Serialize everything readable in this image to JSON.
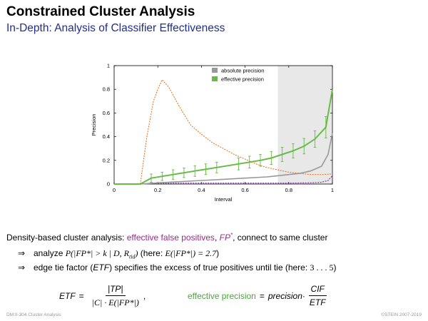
{
  "slide": {
    "title": "Constrained Cluster Analysis",
    "subtitle": "In-Depth: Analysis of Classifier Effectiveness"
  },
  "text": {
    "line1_a": "Density-based cluster analysis: ",
    "line1_em": "effective false positives",
    "line1_comma": ", ",
    "line1_fp": "FP",
    "line1_star": "*",
    "line1_b": ", connect to same cluster",
    "bullet1_arrow": "⇒",
    "bullet1_a": "analyze ",
    "bullet1_math": "P(|FP*| > k  |  D, R",
    "bullet1_sub": "tid",
    "bullet1_math_end": ")",
    "bullet1_b": "  (here: ",
    "bullet1_math2": "E(|FP*|) = 2.7",
    "bullet1_c": ")",
    "bullet2_arrow": "⇒",
    "bullet2_a": "edge tie factor (",
    "bullet2_etf": "ETF",
    "bullet2_b": ") specifies the excess of true positives until tie  (here: ",
    "bullet2_range": "3 . . . 5",
    "bullet2_c": ")"
  },
  "formula": {
    "etf_lhs": "ETF",
    "eq": "=",
    "etf_num": "|TP|",
    "etf_den": "|C| · E(|FP*|)",
    "comma": ",",
    "effprec_lhs": "effective precision",
    "eq2": "=",
    "prec": "precision",
    "dot": " ·",
    "cif_num": "CIF",
    "cif_den": "ETF"
  },
  "footer": {
    "left": "DM:II-304   Cluster Analysis",
    "right": "©STEIN 2007-2019"
  },
  "colors": {
    "absolute": "#999999",
    "effective": "#66bb44",
    "orange": "#ee7722",
    "purple": "#773399",
    "shade": "#e8e8e8"
  },
  "chart_data": {
    "type": "line",
    "xlabel": "Interval",
    "ylabel": "Precision",
    "xlim": [
      0,
      1
    ],
    "ylim": [
      0,
      1
    ],
    "xticks": [
      "0",
      "0.2",
      "0.4",
      "0.6",
      "0.8",
      "1"
    ],
    "yticks": [
      "0",
      "0.2",
      "0.4",
      "0.6",
      "0.8",
      "1"
    ],
    "xtick_values": [
      0,
      0.2,
      0.4,
      0.6,
      0.8,
      1
    ],
    "ytick_values": [
      0,
      0.2,
      0.4,
      0.6,
      0.8,
      1
    ],
    "legend_position": "top-right",
    "shaded_region": [
      0.75,
      1.0
    ],
    "series": [
      {
        "name": "absolute precision",
        "style": "solid-gray",
        "x": [
          0,
          0.12,
          0.2,
          0.3,
          0.4,
          0.5,
          0.6,
          0.7,
          0.8,
          0.85,
          0.9,
          0.95,
          0.98,
          1.0
        ],
        "y": [
          0,
          0,
          0.01,
          0.02,
          0.03,
          0.04,
          0.05,
          0.06,
          0.08,
          0.09,
          0.11,
          0.15,
          0.25,
          0.43
        ]
      },
      {
        "name": "effective precision",
        "style": "solid-green",
        "x": [
          0,
          0.12,
          0.17,
          0.22,
          0.27,
          0.32,
          0.37,
          0.42,
          0.47,
          0.52,
          0.57,
          0.62,
          0.67,
          0.72,
          0.77,
          0.82,
          0.87,
          0.92,
          0.97,
          1.0
        ],
        "y": [
          0,
          0,
          0.05,
          0.065,
          0.08,
          0.095,
          0.11,
          0.125,
          0.14,
          0.155,
          0.17,
          0.185,
          0.2,
          0.22,
          0.25,
          0.28,
          0.32,
          0.38,
          0.48,
          0.8
        ],
        "error_x": [
          0.17,
          0.22,
          0.27,
          0.32,
          0.37,
          0.42,
          0.47,
          0.57,
          0.62,
          0.67,
          0.72,
          0.77,
          0.82,
          0.87,
          0.92,
          0.97
        ],
        "error_y": [
          0.05,
          0.065,
          0.08,
          0.095,
          0.11,
          0.125,
          0.14,
          0.17,
          0.185,
          0.2,
          0.22,
          0.25,
          0.28,
          0.32,
          0.38,
          0.48
        ],
        "error_err": [
          0.035,
          0.035,
          0.04,
          0.04,
          0.045,
          0.045,
          0.045,
          0.05,
          0.05,
          0.05,
          0.055,
          0.06,
          0.06,
          0.065,
          0.07,
          0.09
        ]
      },
      {
        "style": "dotted-orange",
        "x": [
          0.12,
          0.15,
          0.18,
          0.2,
          0.22,
          0.25,
          0.3,
          0.35,
          0.4,
          0.45,
          0.5,
          0.55,
          0.6,
          0.65,
          0.7,
          0.75,
          0.8,
          0.85,
          0.9,
          0.95,
          1.0
        ],
        "y": [
          0.0,
          0.4,
          0.7,
          0.8,
          0.88,
          0.82,
          0.65,
          0.5,
          0.42,
          0.35,
          0.3,
          0.25,
          0.21,
          0.17,
          0.14,
          0.12,
          0.1,
          0.09,
          0.08,
          0.08,
          0.085
        ]
      },
      {
        "style": "dotted-purple",
        "x": [
          0.12,
          0.2,
          0.3,
          0.4,
          0.5,
          0.6,
          0.7,
          0.8,
          0.9,
          0.95,
          0.98,
          1.0
        ],
        "y": [
          0,
          0.005,
          0.008,
          0.008,
          0.008,
          0.008,
          0.008,
          0.008,
          0.01,
          0.015,
          0.03,
          0.07
        ]
      }
    ]
  }
}
